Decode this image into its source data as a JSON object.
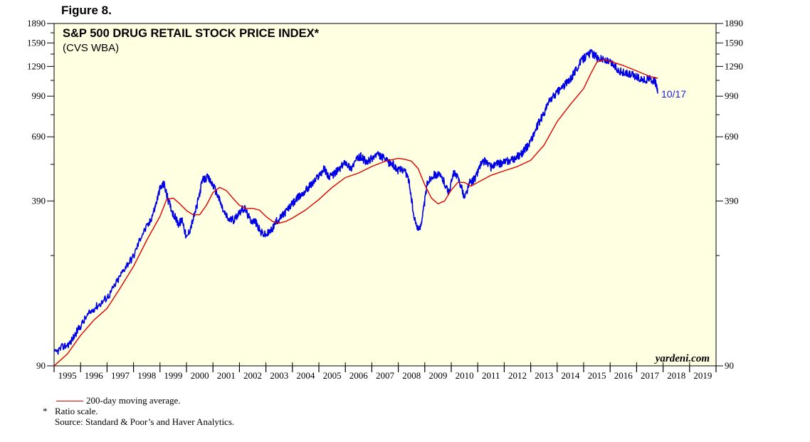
{
  "figure_label": "Figure 8.",
  "legend_ma": "200-day moving average.",
  "note_star": "*",
  "note_ratio": "Ratio scale.",
  "source": "Source: Standard & Poor’s and Haver Analytics.",
  "watermark": "yardeni.com",
  "colors": {
    "price": "#0000e6",
    "ma": "#e00000",
    "plot_bg": "#ffffe1",
    "axis": "#000000",
    "annotation": "#1a1ae6"
  },
  "chart_data": {
    "type": "line",
    "title": "S&P 500 DRUG RETAIL STOCK PRICE INDEX*",
    "subtitle": "(CVS WBA)",
    "scale": "log",
    "ylim": [
      90,
      1890
    ],
    "y_ticks": [
      90,
      390,
      690,
      990,
      1290,
      1590,
      1890
    ],
    "y_minor_ticks": [
      240,
      540,
      840,
      1140,
      1440,
      1740
    ],
    "x_range": [
      1995.0,
      2020.0
    ],
    "x_tick_labels": [
      "1995",
      "1996",
      "1997",
      "1998",
      "1999",
      "2000",
      "2001",
      "2002",
      "2003",
      "2004",
      "2005",
      "2006",
      "2007",
      "2008",
      "2009",
      "2010",
      "2011",
      "2012",
      "2013",
      "2014",
      "2015",
      "2016",
      "2017",
      "2018",
      "2019"
    ],
    "annotation": "10/17",
    "series": [
      {
        "role": "price",
        "x": [
          1995.0,
          1995.3,
          1995.6,
          1995.9,
          1996.2,
          1996.5,
          1996.8,
          1997.1,
          1997.4,
          1997.7,
          1998.0,
          1998.3,
          1998.6,
          1998.8,
          1999.0,
          1999.15,
          1999.3,
          1999.5,
          1999.7,
          1999.85,
          2000.0,
          2000.2,
          2000.4,
          2000.6,
          2000.8,
          2001.0,
          2001.2,
          2001.4,
          2001.6,
          2001.8,
          2002.0,
          2002.2,
          2002.4,
          2002.6,
          2002.8,
          2003.0,
          2003.2,
          2003.4,
          2003.6,
          2003.8,
          2004.0,
          2004.2,
          2004.4,
          2004.6,
          2004.8,
          2005.0,
          2005.2,
          2005.4,
          2005.6,
          2005.8,
          2006.0,
          2006.2,
          2006.4,
          2006.6,
          2006.8,
          2007.0,
          2007.2,
          2007.4,
          2007.6,
          2007.8,
          2008.0,
          2008.2,
          2008.4,
          2008.6,
          2008.8,
          2008.95,
          2009.1,
          2009.3,
          2009.5,
          2009.7,
          2009.9,
          2010.1,
          2010.3,
          2010.5,
          2010.7,
          2010.9,
          2011.1,
          2011.3,
          2011.5,
          2011.7,
          2011.9,
          2012.1,
          2012.3,
          2012.5,
          2012.7,
          2012.9,
          2013.1,
          2013.3,
          2013.5,
          2013.7,
          2013.9,
          2014.1,
          2014.3,
          2014.5,
          2014.7,
          2014.9,
          2015.1,
          2015.3,
          2015.5,
          2015.7,
          2015.9,
          2016.1,
          2016.3,
          2016.5,
          2016.7,
          2016.9,
          2017.1,
          2017.3,
          2017.5,
          2017.7,
          2017.8
        ],
        "y": [
          100,
          106,
          110,
          124,
          138,
          150,
          158,
          170,
          192,
          218,
          238,
          288,
          320,
          365,
          435,
          455,
          395,
          348,
          318,
          330,
          278,
          318,
          375,
          468,
          480,
          450,
          405,
          355,
          330,
          330,
          355,
          365,
          330,
          325,
          295,
          288,
          300,
          325,
          340,
          360,
          380,
          400,
          418,
          440,
          460,
          490,
          520,
          480,
          500,
          520,
          555,
          520,
          560,
          580,
          545,
          570,
          590,
          575,
          550,
          540,
          510,
          520,
          470,
          330,
          300,
          360,
          460,
          490,
          495,
          470,
          420,
          500,
          470,
          400,
          460,
          475,
          540,
          560,
          525,
          540,
          545,
          555,
          560,
          580,
          600,
          640,
          700,
          780,
          850,
          950,
          1000,
          1050,
          1100,
          1150,
          1250,
          1350,
          1420,
          1460,
          1400,
          1380,
          1350,
          1320,
          1250,
          1220,
          1200,
          1190,
          1160,
          1140,
          1150,
          1130,
          1020
        ]
      },
      {
        "role": "ma",
        "name": "200-day moving average.",
        "x": [
          1995.0,
          1995.5,
          1996.0,
          1996.5,
          1997.0,
          1997.5,
          1998.0,
          1998.5,
          1999.0,
          1999.25,
          1999.5,
          1999.75,
          2000.0,
          2000.25,
          2000.5,
          2000.75,
          2001.0,
          2001.25,
          2001.5,
          2001.75,
          2002.0,
          2002.25,
          2002.5,
          2002.75,
          2003.0,
          2003.25,
          2003.5,
          2003.75,
          2004.0,
          2004.5,
          2005.0,
          2005.5,
          2006.0,
          2006.5,
          2007.0,
          2007.5,
          2008.0,
          2008.25,
          2008.5,
          2008.75,
          2009.0,
          2009.25,
          2009.5,
          2009.75,
          2010.0,
          2010.25,
          2010.5,
          2010.75,
          2011.0,
          2011.5,
          2012.0,
          2012.5,
          2013.0,
          2013.5,
          2014.0,
          2014.5,
          2015.0,
          2015.25,
          2015.5,
          2015.75,
          2016.0,
          2016.5,
          2017.0,
          2017.5,
          2017.8
        ],
        "y": [
          90,
          100,
          118,
          135,
          150,
          180,
          218,
          275,
          340,
          395,
          400,
          380,
          358,
          345,
          345,
          375,
          420,
          440,
          428,
          400,
          375,
          365,
          365,
          360,
          340,
          325,
          320,
          325,
          335,
          360,
          395,
          440,
          480,
          500,
          530,
          555,
          570,
          565,
          555,
          520,
          450,
          400,
          380,
          390,
          430,
          460,
          460,
          445,
          460,
          490,
          510,
          530,
          560,
          640,
          790,
          920,
          1060,
          1200,
          1340,
          1370,
          1350,
          1300,
          1240,
          1180,
          1160
        ]
      }
    ]
  }
}
